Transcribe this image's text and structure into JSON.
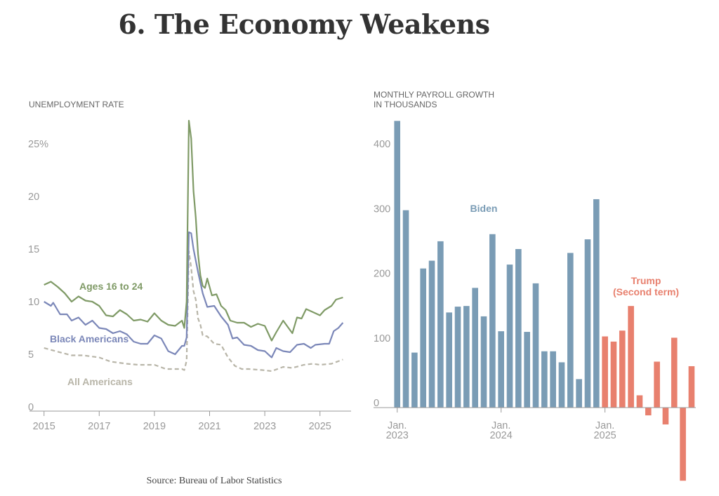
{
  "title": "6. The Economy Weakens",
  "source": "Source: Bureau of Labor Statistics",
  "chart_data": [
    {
      "type": "line",
      "title": "UNEMPLOYMENT RATE",
      "ylim": [
        0,
        27
      ],
      "yticks": [
        0,
        5,
        10,
        15,
        20,
        25
      ],
      "ytick_labels": [
        "0",
        "5",
        "10",
        "15",
        "20",
        "25%"
      ],
      "xticks": [
        "2015",
        "2017",
        "2019",
        "2021",
        "2023",
        "2025"
      ],
      "grid": false,
      "series": [
        {
          "name": "Ages 16 to 24",
          "color": "#7f9a66",
          "dashed": false,
          "points": [
            [
              "2015-01",
              11.6
            ],
            [
              "2015-04",
              11.9
            ],
            [
              "2015-07",
              11.4
            ],
            [
              "2015-10",
              10.8
            ],
            [
              "2016-01",
              10.0
            ],
            [
              "2016-04",
              10.5
            ],
            [
              "2016-07",
              10.1
            ],
            [
              "2016-10",
              10.0
            ],
            [
              "2017-01",
              9.6
            ],
            [
              "2017-04",
              8.7
            ],
            [
              "2017-07",
              8.6
            ],
            [
              "2017-10",
              9.2
            ],
            [
              "2018-01",
              8.8
            ],
            [
              "2018-04",
              8.2
            ],
            [
              "2018-07",
              8.3
            ],
            [
              "2018-10",
              8.1
            ],
            [
              "2019-01",
              8.9
            ],
            [
              "2019-04",
              8.2
            ],
            [
              "2019-07",
              7.8
            ],
            [
              "2019-10",
              7.7
            ],
            [
              "2020-01",
              8.2
            ],
            [
              "2020-02",
              7.5
            ],
            [
              "2020-03",
              10.0
            ],
            [
              "2020-04",
              27.2
            ],
            [
              "2020-05",
              25.5
            ],
            [
              "2020-06",
              20.5
            ],
            [
              "2020-07",
              18.0
            ],
            [
              "2020-08",
              14.5
            ],
            [
              "2020-09",
              12.5
            ],
            [
              "2020-10",
              11.5
            ],
            [
              "2020-11",
              11.3
            ],
            [
              "2020-12",
              12.2
            ],
            [
              "2021-02",
              10.6
            ],
            [
              "2021-04",
              10.7
            ],
            [
              "2021-06",
              9.6
            ],
            [
              "2021-08",
              9.2
            ],
            [
              "2021-10",
              8.2
            ],
            [
              "2022-01",
              8.0
            ],
            [
              "2022-04",
              8.0
            ],
            [
              "2022-07",
              7.6
            ],
            [
              "2022-10",
              7.9
            ],
            [
              "2023-01",
              7.7
            ],
            [
              "2023-04",
              6.3
            ],
            [
              "2023-06",
              7.1
            ],
            [
              "2023-09",
              8.2
            ],
            [
              "2023-11",
              7.6
            ],
            [
              "2024-01",
              7.0
            ],
            [
              "2024-03",
              8.5
            ],
            [
              "2024-05",
              8.4
            ],
            [
              "2024-07",
              9.3
            ],
            [
              "2024-10",
              9.0
            ],
            [
              "2025-01",
              8.7
            ],
            [
              "2025-03",
              9.2
            ],
            [
              "2025-06",
              9.6
            ],
            [
              "2025-08",
              10.2
            ],
            [
              "2025-11",
              10.4
            ]
          ]
        },
        {
          "name": "Black Americans",
          "color": "#7b87b8",
          "dashed": false,
          "points": [
            [
              "2015-01",
              10.0
            ],
            [
              "2015-04",
              9.6
            ],
            [
              "2015-05",
              9.9
            ],
            [
              "2015-08",
              8.8
            ],
            [
              "2015-11",
              8.8
            ],
            [
              "2016-01",
              8.2
            ],
            [
              "2016-04",
              8.5
            ],
            [
              "2016-07",
              7.8
            ],
            [
              "2016-10",
              8.2
            ],
            [
              "2017-01",
              7.5
            ],
            [
              "2017-04",
              7.4
            ],
            [
              "2017-07",
              7.0
            ],
            [
              "2017-10",
              7.2
            ],
            [
              "2018-01",
              6.9
            ],
            [
              "2018-04",
              6.2
            ],
            [
              "2018-07",
              6.0
            ],
            [
              "2018-10",
              6.0
            ],
            [
              "2019-01",
              6.8
            ],
            [
              "2019-04",
              6.5
            ],
            [
              "2019-07",
              5.3
            ],
            [
              "2019-10",
              5.0
            ],
            [
              "2020-01",
              5.8
            ],
            [
              "2020-02",
              5.8
            ],
            [
              "2020-03",
              6.6
            ],
            [
              "2020-04",
              16.6
            ],
            [
              "2020-05",
              16.5
            ],
            [
              "2020-06",
              15.0
            ],
            [
              "2020-08",
              12.8
            ],
            [
              "2020-10",
              10.8
            ],
            [
              "2020-12",
              9.5
            ],
            [
              "2021-03",
              9.6
            ],
            [
              "2021-06",
              8.6
            ],
            [
              "2021-09",
              7.8
            ],
            [
              "2021-11",
              6.5
            ],
            [
              "2022-01",
              6.6
            ],
            [
              "2022-04",
              5.9
            ],
            [
              "2022-07",
              5.8
            ],
            [
              "2022-10",
              5.4
            ],
            [
              "2023-01",
              5.3
            ],
            [
              "2023-04",
              4.7
            ],
            [
              "2023-06",
              5.6
            ],
            [
              "2023-09",
              5.3
            ],
            [
              "2023-12",
              5.2
            ],
            [
              "2024-03",
              5.9
            ],
            [
              "2024-06",
              6.0
            ],
            [
              "2024-09",
              5.6
            ],
            [
              "2024-11",
              5.9
            ],
            [
              "2025-03",
              6.0
            ],
            [
              "2025-05",
              6.0
            ],
            [
              "2025-07",
              7.2
            ],
            [
              "2025-09",
              7.5
            ],
            [
              "2025-11",
              8.0
            ]
          ]
        },
        {
          "name": "All Americans",
          "color": "#b8b5a8",
          "dashed": true,
          "points": [
            [
              "2015-01",
              5.6
            ],
            [
              "2015-06",
              5.3
            ],
            [
              "2016-01",
              4.9
            ],
            [
              "2016-06",
              4.9
            ],
            [
              "2017-01",
              4.7
            ],
            [
              "2017-06",
              4.3
            ],
            [
              "2018-01",
              4.1
            ],
            [
              "2018-06",
              4.0
            ],
            [
              "2019-01",
              4.0
            ],
            [
              "2019-06",
              3.6
            ],
            [
              "2020-01",
              3.6
            ],
            [
              "2020-02",
              3.5
            ],
            [
              "2020-03",
              4.4
            ],
            [
              "2020-04",
              14.8
            ],
            [
              "2020-05",
              13.2
            ],
            [
              "2020-06",
              11.0
            ],
            [
              "2020-07",
              10.2
            ],
            [
              "2020-08",
              8.4
            ],
            [
              "2020-09",
              7.8
            ],
            [
              "2020-10",
              6.8
            ],
            [
              "2020-12",
              6.7
            ],
            [
              "2021-03",
              6.0
            ],
            [
              "2021-06",
              5.9
            ],
            [
              "2021-09",
              4.7
            ],
            [
              "2021-12",
              3.9
            ],
            [
              "2022-03",
              3.6
            ],
            [
              "2022-06",
              3.6
            ],
            [
              "2022-12",
              3.5
            ],
            [
              "2023-04",
              3.4
            ],
            [
              "2023-09",
              3.8
            ],
            [
              "2024-01",
              3.7
            ],
            [
              "2024-06",
              4.0
            ],
            [
              "2024-10",
              4.1
            ],
            [
              "2025-01",
              4.0
            ],
            [
              "2025-06",
              4.1
            ],
            [
              "2025-11",
              4.5
            ]
          ]
        }
      ]
    },
    {
      "type": "bar",
      "title": "MONTHLY PAYROLL GROWTH IN THOUSANDS",
      "title_lines": [
        "MONTHLY PAYROLL GROWTH",
        "IN THOUSANDS"
      ],
      "ylim": [
        -113,
        443
      ],
      "yticks": [
        0,
        100,
        200,
        300,
        400
      ],
      "xticks": [
        {
          "month": "Jan.",
          "year": "2023"
        },
        {
          "month": "Jan.",
          "year": "2024"
        },
        {
          "month": "Jan.",
          "year": "2025"
        }
      ],
      "categories": [
        "2023-01",
        "2023-02",
        "2023-03",
        "2023-04",
        "2023-05",
        "2023-06",
        "2023-07",
        "2023-08",
        "2023-09",
        "2023-10",
        "2023-11",
        "2023-12",
        "2024-01",
        "2024-02",
        "2024-03",
        "2024-04",
        "2024-05",
        "2024-06",
        "2024-07",
        "2024-08",
        "2024-09",
        "2024-10",
        "2024-11",
        "2024-12",
        "2025-01",
        "2025-02",
        "2025-03",
        "2025-04",
        "2025-05",
        "2025-06",
        "2025-07",
        "2025-08",
        "2025-09",
        "2025-10",
        "2025-11"
      ],
      "series": [
        {
          "name": "Biden",
          "color": "#7a9cb5",
          "values": [
            443,
            305,
            85,
            215,
            227,
            257,
            147,
            156,
            157,
            185,
            141,
            268,
            118,
            221,
            245,
            117,
            192,
            87,
            87,
            70,
            239,
            44,
            260,
            322,
            null,
            null,
            null,
            null,
            null,
            null,
            null,
            null,
            null,
            null,
            null
          ]
        },
        {
          "name": "Trump (Second term)",
          "label_lines": [
            "Trump",
            "(Second term)"
          ],
          "color": "#e8806e",
          "values": [
            null,
            null,
            null,
            null,
            null,
            null,
            null,
            null,
            null,
            null,
            null,
            null,
            null,
            null,
            null,
            null,
            null,
            null,
            null,
            null,
            null,
            null,
            null,
            null,
            110,
            102,
            119,
            157,
            19,
            -12,
            71,
            -26,
            108,
            -113,
            64
          ]
        }
      ]
    }
  ]
}
